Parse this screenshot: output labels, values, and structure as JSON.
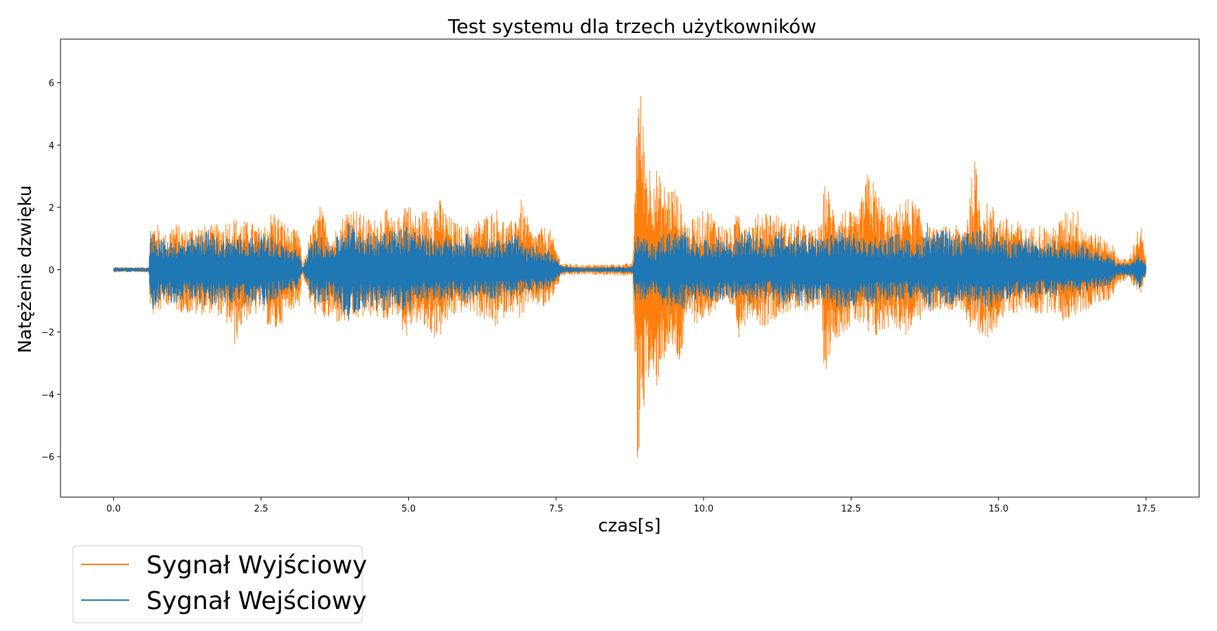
{
  "chart_data": {
    "type": "line",
    "title": "Test systemu dla trzech użytkowników",
    "xlabel": "czas[s]",
    "ylabel": "Natężenie dzwięku",
    "xlim": [
      -0.9,
      18.4
    ],
    "ylim": [
      -7.3,
      7.4
    ],
    "xticks": [
      0.0,
      2.5,
      5.0,
      7.5,
      10.0,
      12.5,
      15.0,
      17.5
    ],
    "xtick_labels": [
      "0.0",
      "2.5",
      "5.0",
      "7.5",
      "10.0",
      "12.5",
      "15.0",
      "17.5"
    ],
    "yticks": [
      -6,
      -4,
      -2,
      0,
      2,
      4,
      6
    ],
    "ytick_labels": [
      "−6",
      "−4",
      "−2",
      "0",
      "2",
      "4",
      "6"
    ],
    "grid": false,
    "legend_position": "below-left",
    "series": [
      {
        "name": "Sygnał Wyjściowy",
        "color": "#ff7f0e",
        "description_of_envelope": "amplitude envelope (upper, lower) sampled along time",
        "t": [
          0.0,
          0.6,
          0.62,
          0.7,
          0.9,
          1.0,
          1.2,
          1.4,
          1.6,
          1.8,
          2.0,
          2.05,
          2.2,
          2.4,
          2.5,
          2.7,
          3.0,
          3.15,
          3.2,
          3.35,
          3.5,
          3.7,
          3.9,
          4.0,
          4.2,
          4.4,
          4.6,
          4.8,
          4.95,
          5.1,
          5.3,
          5.5,
          5.7,
          5.9,
          6.1,
          6.3,
          6.5,
          6.7,
          6.9,
          7.1,
          7.3,
          7.4,
          7.6,
          8.0,
          8.8,
          8.85,
          8.88,
          8.95,
          9.05,
          9.15,
          9.3,
          9.5,
          9.6,
          9.75,
          9.9,
          10.1,
          10.3,
          10.5,
          10.6,
          10.8,
          11.0,
          11.2,
          11.4,
          11.6,
          11.8,
          12.0,
          12.05,
          12.2,
          12.4,
          12.6,
          12.8,
          13.0,
          13.2,
          13.4,
          13.6,
          13.8,
          14.0,
          14.2,
          14.4,
          14.6,
          14.7,
          14.9,
          15.1,
          15.3,
          15.5,
          15.7,
          15.9,
          16.1,
          16.3,
          16.5,
          16.7,
          16.9,
          17.0,
          17.2,
          17.4,
          17.5
        ],
        "upper": [
          0.08,
          0.08,
          1.3,
          1.6,
          1.1,
          1.6,
          1.3,
          1.5,
          1.4,
          1.5,
          1.7,
          1.7,
          1.6,
          1.5,
          1.3,
          2.0,
          1.3,
          1.3,
          0.1,
          1.3,
          2.1,
          1.1,
          1.8,
          2.2,
          1.8,
          1.6,
          2.0,
          1.5,
          2.5,
          1.8,
          2.0,
          2.4,
          1.7,
          1.4,
          1.5,
          1.8,
          2.0,
          1.4,
          2.3,
          1.2,
          1.4,
          1.3,
          0.2,
          0.15,
          0.2,
          4.0,
          6.7,
          5.5,
          3.5,
          3.6,
          2.8,
          2.8,
          2.2,
          1.5,
          1.8,
          2.0,
          1.5,
          1.3,
          2.2,
          1.5,
          2.0,
          1.9,
          1.5,
          1.6,
          1.3,
          1.4,
          3.0,
          2.1,
          2.0,
          1.7,
          3.3,
          2.3,
          1.7,
          2.4,
          2.2,
          1.4,
          1.3,
          1.5,
          1.3,
          3.6,
          2.2,
          2.1,
          1.7,
          1.6,
          1.3,
          1.5,
          1.3,
          1.8,
          2.1,
          1.4,
          1.1,
          1.0,
          0.5,
          0.3,
          1.6,
          0.3
        ],
        "lower": [
          -0.08,
          -0.08,
          -1.2,
          -1.6,
          -1.1,
          -1.3,
          -1.4,
          -1.5,
          -1.4,
          -1.5,
          -2.0,
          -2.5,
          -1.7,
          -1.5,
          -1.3,
          -2.2,
          -1.3,
          -1.2,
          -0.1,
          -1.3,
          -1.6,
          -1.7,
          -1.8,
          -1.8,
          -1.6,
          -1.5,
          -1.7,
          -1.4,
          -2.3,
          -1.7,
          -2.0,
          -2.3,
          -1.6,
          -1.4,
          -1.4,
          -1.7,
          -1.9,
          -1.3,
          -1.6,
          -1.1,
          -1.3,
          -1.1,
          -0.2,
          -0.15,
          -0.2,
          -4.0,
          -6.6,
          -5.0,
          -3.6,
          -4.4,
          -3.0,
          -2.7,
          -3.2,
          -1.5,
          -1.8,
          -1.5,
          -1.3,
          -1.2,
          -2.2,
          -1.4,
          -1.9,
          -1.6,
          -1.4,
          -1.4,
          -1.3,
          -1.3,
          -3.5,
          -2.3,
          -2.0,
          -1.7,
          -2.3,
          -2.2,
          -1.7,
          -2.2,
          -1.8,
          -1.4,
          -1.3,
          -1.3,
          -1.3,
          -2.7,
          -2.5,
          -2.0,
          -1.6,
          -1.4,
          -1.3,
          -1.5,
          -1.3,
          -1.7,
          -1.5,
          -1.3,
          -1.1,
          -1.0,
          -0.5,
          -0.3,
          -0.8,
          -0.3
        ]
      },
      {
        "name": "Sygnał Wejściowy",
        "color": "#1f77b4",
        "description_of_envelope": "amplitude envelope (upper, lower) sampled along time",
        "t": [
          0.0,
          0.6,
          0.62,
          0.7,
          0.9,
          1.0,
          1.2,
          1.4,
          1.6,
          1.8,
          2.0,
          2.2,
          2.4,
          2.6,
          2.8,
          3.0,
          3.15,
          3.2,
          3.35,
          3.5,
          3.7,
          3.9,
          4.0,
          4.2,
          4.4,
          4.6,
          4.8,
          5.0,
          5.2,
          5.4,
          5.6,
          5.8,
          6.0,
          6.2,
          6.4,
          6.6,
          6.8,
          7.0,
          7.2,
          7.4,
          7.6,
          8.0,
          8.8,
          8.85,
          9.0,
          9.2,
          9.3,
          9.5,
          9.7,
          9.9,
          10.1,
          10.3,
          10.5,
          10.7,
          10.9,
          11.1,
          11.3,
          11.5,
          11.7,
          11.9,
          12.1,
          12.3,
          12.5,
          12.7,
          12.9,
          13.1,
          13.3,
          13.5,
          13.7,
          13.8,
          13.9,
          14.1,
          14.3,
          14.5,
          14.7,
          14.9,
          15.1,
          15.3,
          15.5,
          15.7,
          15.9,
          16.1,
          16.3,
          16.5,
          16.7,
          16.9,
          17.0,
          17.2,
          17.4,
          17.5
        ],
        "upper": [
          0.06,
          0.06,
          1.3,
          1.2,
          0.9,
          1.0,
          0.9,
          1.1,
          1.3,
          1.0,
          1.1,
          1.0,
          1.1,
          1.2,
          0.9,
          0.7,
          0.6,
          0.05,
          0.9,
          1.1,
          0.8,
          1.4,
          1.6,
          1.3,
          1.1,
          1.5,
          1.3,
          1.5,
          1.2,
          1.0,
          1.1,
          0.9,
          1.2,
          0.8,
          1.1,
          0.9,
          1.2,
          0.7,
          0.8,
          0.6,
          0.1,
          0.06,
          0.1,
          1.1,
          1.0,
          0.8,
          1.2,
          1.2,
          1.3,
          0.9,
          1.0,
          1.1,
          0.9,
          1.3,
          1.1,
          0.9,
          1.3,
          1.0,
          1.4,
          1.0,
          1.0,
          1.4,
          1.2,
          1.0,
          1.1,
          1.0,
          1.2,
          0.9,
          0.9,
          1.6,
          1.2,
          1.3,
          1.1,
          1.2,
          1.3,
          1.4,
          1.0,
          0.9,
          1.1,
          0.8,
          1.0,
          0.8,
          0.9,
          0.8,
          0.6,
          0.5,
          0.2,
          0.2,
          0.6,
          0.2
        ],
        "lower": [
          -0.06,
          -0.06,
          -1.4,
          -1.2,
          -0.9,
          -1.1,
          -1.0,
          -1.0,
          -1.3,
          -1.0,
          -1.2,
          -1.1,
          -1.3,
          -1.1,
          -0.9,
          -0.7,
          -0.6,
          -0.05,
          -0.9,
          -1.2,
          -0.9,
          -1.5,
          -1.6,
          -1.3,
          -1.2,
          -1.4,
          -1.3,
          -1.4,
          -1.1,
          -1.0,
          -1.0,
          -0.9,
          -1.1,
          -0.8,
          -1.0,
          -0.9,
          -1.0,
          -0.7,
          -0.7,
          -0.6,
          -0.1,
          -0.06,
          -0.1,
          -1.2,
          -1.0,
          -0.8,
          -1.2,
          -1.2,
          -1.3,
          -0.9,
          -1.0,
          -1.0,
          -0.9,
          -1.2,
          -1.1,
          -0.9,
          -1.2,
          -1.0,
          -1.3,
          -1.0,
          -1.0,
          -1.3,
          -1.2,
          -1.0,
          -1.1,
          -1.0,
          -1.1,
          -0.9,
          -0.9,
          -1.5,
          -1.2,
          -1.2,
          -1.1,
          -1.2,
          -1.2,
          -1.3,
          -1.0,
          -0.9,
          -1.0,
          -0.8,
          -0.9,
          -0.8,
          -0.9,
          -0.7,
          -0.6,
          -0.5,
          -0.2,
          -0.2,
          -0.6,
          -0.2
        ]
      }
    ]
  }
}
